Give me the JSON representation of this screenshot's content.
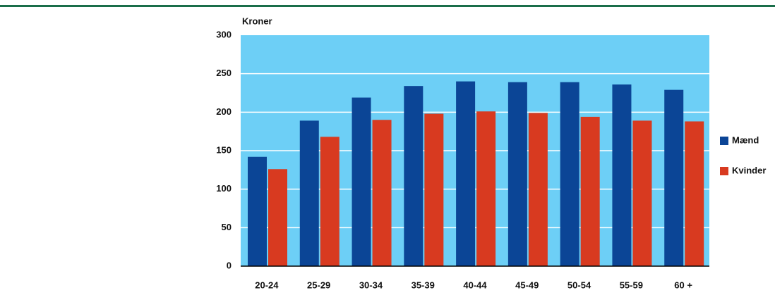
{
  "chart_data": {
    "type": "bar",
    "y_label": "Kroner",
    "categories": [
      "20-24",
      "25-29",
      "30-34",
      "35-39",
      "40-44",
      "45-49",
      "50-54",
      "55-59",
      "60 +"
    ],
    "series": [
      {
        "name": "Mænd",
        "color": "#0b4596",
        "values": [
          142,
          189,
          219,
          234,
          240,
          239,
          239,
          236,
          229
        ]
      },
      {
        "name": "Kvinder",
        "color": "#d83a20",
        "values": [
          126,
          168,
          190,
          198,
          201,
          199,
          194,
          189,
          188
        ]
      }
    ],
    "ylim": [
      0,
      300
    ],
    "yticks": [
      0,
      50,
      100,
      150,
      200,
      250,
      300
    ],
    "grid": true,
    "legend": "right"
  }
}
